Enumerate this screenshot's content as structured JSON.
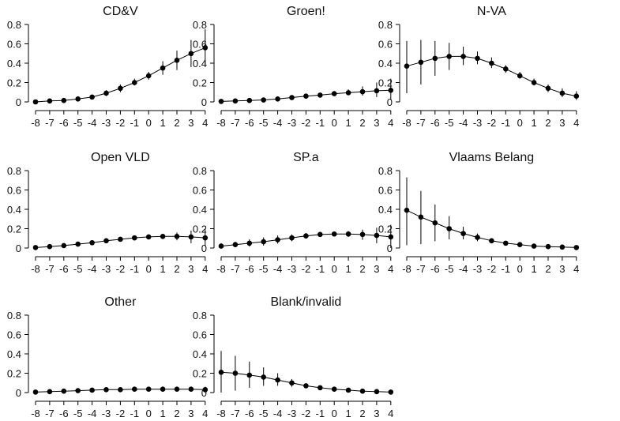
{
  "chart_data": [
    {
      "type": "scatter",
      "title": "CD&V",
      "x": [
        -8,
        -7,
        -6,
        -5,
        -4,
        -3,
        -2,
        -1,
        0,
        1,
        2,
        3,
        4
      ],
      "x_tick_labels": [
        "-8",
        "-7",
        "-6",
        "-5",
        "-4",
        "-3",
        "-2",
        "-1",
        "0",
        "1",
        "2",
        "3",
        "4"
      ],
      "y": [
        0.0,
        0.01,
        0.015,
        0.03,
        0.05,
        0.09,
        0.14,
        0.2,
        0.27,
        0.35,
        0.43,
        0.5,
        0.56
      ],
      "y_low": [
        0.0,
        0.0,
        0.005,
        0.015,
        0.03,
        0.06,
        0.1,
        0.17,
        0.23,
        0.28,
        0.33,
        0.36,
        0.37
      ],
      "y_high": [
        0.01,
        0.02,
        0.025,
        0.045,
        0.075,
        0.12,
        0.18,
        0.24,
        0.31,
        0.42,
        0.53,
        0.64,
        0.75
      ],
      "y_tick_labels": [
        "0",
        "0.2",
        "0.4",
        "0.6",
        "0.8"
      ],
      "ylim": [
        0,
        0.8
      ]
    },
    {
      "type": "scatter",
      "title": "Groen!",
      "x": [
        -8,
        -7,
        -6,
        -5,
        -4,
        -3,
        -2,
        -1,
        0,
        1,
        2,
        3,
        4
      ],
      "x_tick_labels": [
        "-8",
        "-7",
        "-6",
        "-5",
        "-4",
        "-3",
        "-2",
        "-1",
        "0",
        "1",
        "2",
        "3",
        "4"
      ],
      "y": [
        0.005,
        0.01,
        0.015,
        0.02,
        0.03,
        0.045,
        0.06,
        0.07,
        0.085,
        0.095,
        0.105,
        0.115,
        0.12
      ],
      "y_low": [
        0.0,
        0.005,
        0.01,
        0.01,
        0.015,
        0.025,
        0.04,
        0.055,
        0.065,
        0.07,
        0.065,
        0.05,
        0.02
      ],
      "y_high": [
        0.01,
        0.015,
        0.025,
        0.03,
        0.045,
        0.065,
        0.08,
        0.09,
        0.11,
        0.13,
        0.16,
        0.2,
        0.24
      ]
    },
    {
      "type": "scatter",
      "title": "N-VA",
      "x": [
        -8,
        -7,
        -6,
        -5,
        -4,
        -3,
        -2,
        -1,
        0,
        1,
        2,
        3,
        4
      ],
      "x_tick_labels": [
        "-8",
        "-7",
        "-6",
        "-5",
        "-4",
        "-3",
        "-2",
        "-1",
        "0",
        "1",
        "2",
        "3",
        "4"
      ],
      "y": [
        0.37,
        0.41,
        0.45,
        0.47,
        0.47,
        0.45,
        0.4,
        0.34,
        0.27,
        0.2,
        0.14,
        0.09,
        0.06
      ],
      "y_low": [
        0.09,
        0.18,
        0.27,
        0.33,
        0.38,
        0.39,
        0.35,
        0.3,
        0.24,
        0.17,
        0.1,
        0.05,
        0.02
      ],
      "y_high": [
        0.63,
        0.64,
        0.63,
        0.61,
        0.57,
        0.52,
        0.46,
        0.38,
        0.31,
        0.24,
        0.18,
        0.14,
        0.11
      ]
    },
    {
      "type": "scatter",
      "title": "Open VLD",
      "x": [
        -8,
        -7,
        -6,
        -5,
        -4,
        -3,
        -2,
        -1,
        0,
        1,
        2,
        3,
        4
      ],
      "x_tick_labels": [
        "-8",
        "-7",
        "-6",
        "-5",
        "-4",
        "-3",
        "-2",
        "-1",
        "0",
        "1",
        "2",
        "3",
        "4"
      ],
      "y": [
        0.005,
        0.015,
        0.025,
        0.04,
        0.055,
        0.075,
        0.09,
        0.105,
        0.115,
        0.12,
        0.12,
        0.115,
        0.105
      ],
      "y_low": [
        0.0,
        0.005,
        0.01,
        0.02,
        0.03,
        0.05,
        0.07,
        0.09,
        0.1,
        0.095,
        0.08,
        0.05,
        0.02
      ],
      "y_high": [
        0.01,
        0.025,
        0.04,
        0.06,
        0.08,
        0.1,
        0.11,
        0.12,
        0.13,
        0.145,
        0.16,
        0.18,
        0.2
      ]
    },
    {
      "type": "scatter",
      "title": "SP.a",
      "x": [
        -8,
        -7,
        -6,
        -5,
        -4,
        -3,
        -2,
        -1,
        0,
        1,
        2,
        3,
        4
      ],
      "x_tick_labels": [
        "-8",
        "-7",
        "-6",
        "-5",
        "-4",
        "-3",
        "-2",
        "-1",
        "0",
        "1",
        "2",
        "3",
        "4"
      ],
      "y": [
        0.02,
        0.035,
        0.05,
        0.065,
        0.085,
        0.105,
        0.125,
        0.14,
        0.145,
        0.145,
        0.14,
        0.13,
        0.115
      ],
      "y_low": [
        0.0,
        0.01,
        0.015,
        0.025,
        0.045,
        0.07,
        0.1,
        0.12,
        0.125,
        0.115,
        0.085,
        0.05,
        0.0
      ],
      "y_high": [
        0.05,
        0.065,
        0.09,
        0.11,
        0.13,
        0.14,
        0.155,
        0.16,
        0.165,
        0.175,
        0.19,
        0.21,
        0.24
      ]
    },
    {
      "type": "scatter",
      "title": "Vlaams Belang",
      "x": [
        -8,
        -7,
        -6,
        -5,
        -4,
        -3,
        -2,
        -1,
        0,
        1,
        2,
        3,
        4
      ],
      "x_tick_labels": [
        "-8",
        "-7",
        "-6",
        "-5",
        "-4",
        "-3",
        "-2",
        "-1",
        "0",
        "1",
        "2",
        "3",
        "4"
      ],
      "y": [
        0.39,
        0.32,
        0.26,
        0.2,
        0.15,
        0.11,
        0.075,
        0.05,
        0.035,
        0.02,
        0.015,
        0.01,
        0.005
      ],
      "y_low": [
        0.03,
        0.04,
        0.07,
        0.09,
        0.09,
        0.07,
        0.05,
        0.035,
        0.025,
        0.01,
        0.005,
        0.0,
        0.0
      ],
      "y_high": [
        0.73,
        0.59,
        0.45,
        0.33,
        0.22,
        0.15,
        0.1,
        0.065,
        0.045,
        0.03,
        0.025,
        0.02,
        0.015
      ]
    },
    {
      "type": "scatter",
      "title": "Other",
      "x": [
        -8,
        -7,
        -6,
        -5,
        -4,
        -3,
        -2,
        -1,
        0,
        1,
        2,
        3,
        4
      ],
      "x_tick_labels": [
        "-8",
        "-7",
        "-6",
        "-5",
        "-4",
        "-3",
        "-2",
        "-1",
        "0",
        "1",
        "2",
        "3",
        "4"
      ],
      "y": [
        0.005,
        0.01,
        0.015,
        0.02,
        0.025,
        0.03,
        0.03,
        0.035,
        0.035,
        0.035,
        0.035,
        0.035,
        0.03
      ],
      "y_low": [
        0.0,
        0.0,
        0.005,
        0.01,
        0.015,
        0.02,
        0.025,
        0.03,
        0.03,
        0.025,
        0.02,
        0.01,
        0.0
      ],
      "y_high": [
        0.015,
        0.02,
        0.025,
        0.03,
        0.035,
        0.04,
        0.04,
        0.045,
        0.045,
        0.045,
        0.05,
        0.055,
        0.06
      ]
    },
    {
      "type": "scatter",
      "title": "Blank/invalid",
      "x": [
        -8,
        -7,
        -6,
        -5,
        -4,
        -3,
        -2,
        -1,
        0,
        1,
        2,
        3,
        4
      ],
      "x_tick_labels": [
        "-8",
        "-7",
        "-6",
        "-5",
        "-4",
        "-3",
        "-2",
        "-1",
        "0",
        "1",
        "2",
        "3",
        "4"
      ],
      "y": [
        0.21,
        0.2,
        0.18,
        0.16,
        0.13,
        0.1,
        0.07,
        0.05,
        0.035,
        0.025,
        0.015,
        0.01,
        0.005
      ],
      "y_low": [
        0.0,
        0.02,
        0.05,
        0.07,
        0.07,
        0.06,
        0.045,
        0.035,
        0.025,
        0.015,
        0.005,
        0.0,
        0.0
      ],
      "y_high": [
        0.43,
        0.38,
        0.32,
        0.26,
        0.2,
        0.14,
        0.09,
        0.065,
        0.045,
        0.035,
        0.025,
        0.02,
        0.015
      ]
    }
  ]
}
